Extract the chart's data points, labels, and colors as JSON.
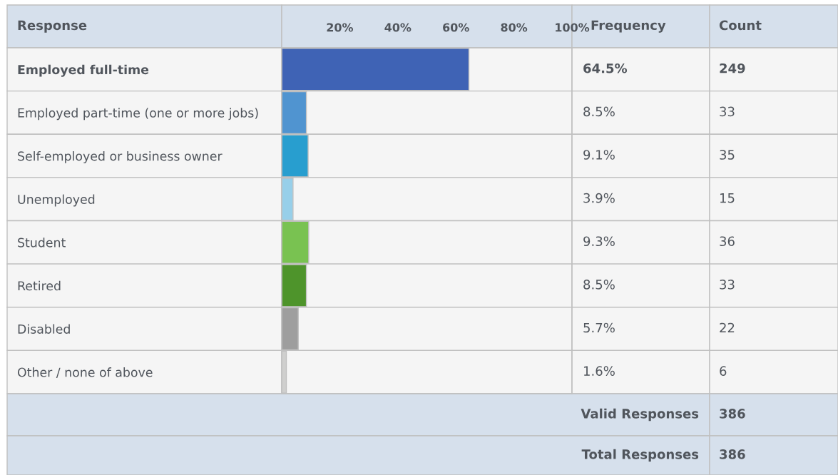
{
  "chart_data": {
    "type": "bar",
    "orientation": "horizontal",
    "categories": [
      "Employed full-time",
      "Employed part-time (one or more jobs)",
      "Self-employed or business owner",
      "Unemployed",
      "Student",
      "Retired",
      "Disabled",
      "Other / none of above"
    ],
    "values": [
      64.5,
      8.5,
      9.1,
      3.9,
      9.3,
      8.5,
      5.7,
      1.6
    ],
    "colors": [
      "#3f63b5",
      "#5094d0",
      "#289ecf",
      "#97cfe9",
      "#79c251",
      "#4e942b",
      "#9e9e9e",
      "#cfcfce"
    ],
    "xlim": [
      0,
      100
    ],
    "xticks": [
      {
        "value": 20,
        "label": "20%"
      },
      {
        "value": 40,
        "label": "40%"
      },
      {
        "value": 60,
        "label": "60%"
      },
      {
        "value": 80,
        "label": "80%"
      },
      {
        "value": 100,
        "label": "100%"
      }
    ],
    "grid": false,
    "legend": false,
    "annotations": [
      "Response",
      "Frequency",
      "Count",
      "64.5%",
      "8.5%",
      "9.1%",
      "3.9%",
      "9.3%",
      "8.5%",
      "5.7%",
      "1.6%",
      "249",
      "33",
      "35",
      "15",
      "36",
      "33",
      "22",
      "6",
      "Valid Responses",
      "386",
      "Total Responses",
      "386"
    ]
  }
}
